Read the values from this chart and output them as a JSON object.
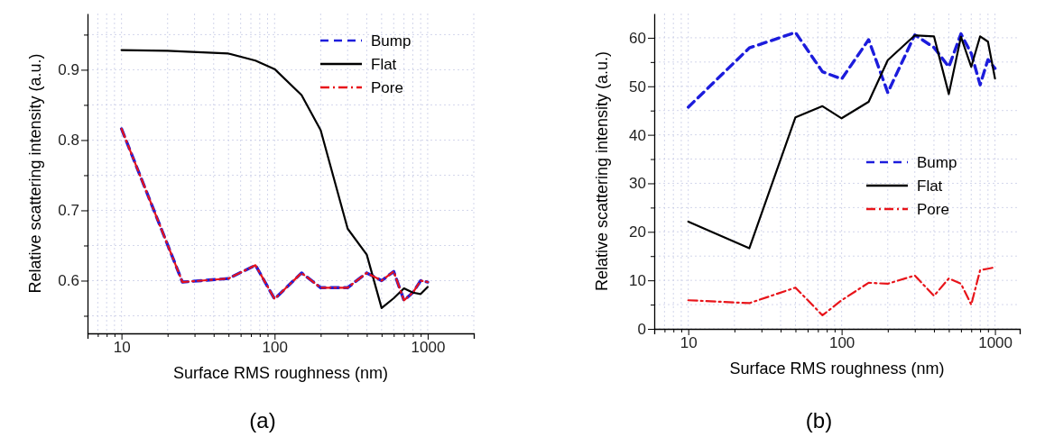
{
  "chart_data": [
    {
      "type": "line",
      "xlabel": "Surface RMS roughness (nm)",
      "ylabel": "Relative scattering intensity (a.u.)",
      "log": "x",
      "grid": true,
      "legend": "top right",
      "xlim": [
        6,
        2000
      ],
      "ylim": [
        0.525,
        0.98
      ],
      "xticks": [
        {
          "value": 7,
          "label": null
        },
        {
          "value": 8,
          "label": null
        },
        {
          "value": 9,
          "label": null
        },
        10,
        {
          "value": 20,
          "label": null
        },
        {
          "value": 30,
          "label": null
        },
        {
          "value": 40,
          "label": null
        },
        {
          "value": 50,
          "label": null
        },
        {
          "value": 60,
          "label": null
        },
        {
          "value": 70,
          "label": null
        },
        {
          "value": 80,
          "label": null
        },
        {
          "value": 90,
          "label": null
        },
        100,
        {
          "value": 200,
          "label": null
        },
        {
          "value": 300,
          "label": null
        },
        {
          "value": 400,
          "label": null
        },
        {
          "value": 500,
          "label": null
        },
        {
          "value": 600,
          "label": null
        },
        {
          "value": 700,
          "label": null
        },
        {
          "value": 800,
          "label": null
        },
        {
          "value": 900,
          "label": null
        },
        1000,
        {
          "value": 2000,
          "label": null
        }
      ],
      "yticks": [
        {
          "value": 0.55,
          "label": null
        },
        0.6,
        {
          "value": 0.65,
          "label": null
        },
        0.7,
        {
          "value": 0.75,
          "label": null
        },
        0.8,
        {
          "value": 0.85,
          "label": null
        },
        0.9,
        {
          "value": 0.95,
          "label": null
        }
      ],
      "x": [
        10,
        25,
        50,
        75,
        100,
        150,
        200,
        300,
        400,
        500,
        600,
        700,
        800,
        900,
        1000
      ],
      "series": [
        {
          "name": "Bump",
          "color": "#1c1cdc",
          "line_style": "dashed",
          "values": [
            0.816,
            0.598,
            0.603,
            0.622,
            0.574,
            0.611,
            0.59,
            0.59,
            0.611,
            0.6,
            0.613,
            0.572,
            0.583,
            0.6,
            0.598
          ]
        },
        {
          "name": "Flat",
          "color": "#000000",
          "line_style": "solid",
          "x": [
            10,
            20,
            25,
            50,
            75,
            100,
            150,
            200,
            300,
            400,
            500,
            600,
            700,
            800,
            900,
            1000
          ],
          "values": [
            0.928,
            0.927,
            0.926,
            0.923,
            0.913,
            0.901,
            0.864,
            0.814,
            0.674,
            0.637,
            0.561,
            0.575,
            0.589,
            0.583,
            0.581,
            0.591
          ]
        },
        {
          "name": "Pore",
          "color": "#e8141a",
          "line_style": "dashdot",
          "values": [
            0.816,
            0.598,
            0.603,
            0.622,
            0.574,
            0.611,
            0.59,
            0.59,
            0.611,
            0.6,
            0.613,
            0.572,
            0.583,
            0.6,
            0.598
          ]
        }
      ],
      "annotations": [
        "(a)"
      ]
    },
    {
      "type": "line",
      "xlabel": "Surface RMS roughness (nm)",
      "ylabel": "Relative scattering intensity (a.u.)",
      "log": "x",
      "grid": true,
      "legend": "right",
      "xlim": [
        6,
        1450
      ],
      "ylim": [
        0,
        65
      ],
      "xticks": [
        {
          "value": 7,
          "label": null
        },
        {
          "value": 8,
          "label": null
        },
        {
          "value": 9,
          "label": null
        },
        10,
        {
          "value": 20,
          "label": null
        },
        {
          "value": 30,
          "label": null
        },
        {
          "value": 40,
          "label": null
        },
        {
          "value": 50,
          "label": null
        },
        {
          "value": 60,
          "label": null
        },
        {
          "value": 70,
          "label": null
        },
        {
          "value": 80,
          "label": null
        },
        {
          "value": 90,
          "label": null
        },
        100,
        {
          "value": 200,
          "label": null
        },
        {
          "value": 300,
          "label": null
        },
        {
          "value": 400,
          "label": null
        },
        {
          "value": 500,
          "label": null
        },
        {
          "value": 600,
          "label": null
        },
        {
          "value": 700,
          "label": null
        },
        {
          "value": 800,
          "label": null
        },
        {
          "value": 900,
          "label": null
        },
        1000
      ],
      "yticks": [
        0,
        {
          "value": 5,
          "label": null
        },
        10,
        {
          "value": 15,
          "label": null
        },
        20,
        {
          "value": 25,
          "label": null
        },
        30,
        {
          "value": 35,
          "label": null
        },
        40,
        {
          "value": 45,
          "label": null
        },
        50,
        {
          "value": 55,
          "label": null
        },
        60
      ],
      "x": [
        10,
        25,
        50,
        75,
        100,
        150,
        200,
        300,
        400,
        500,
        600,
        700,
        800,
        900,
        1000
      ],
      "series": [
        {
          "name": "Bump",
          "color": "#1c1cdc",
          "line_style": "dashed",
          "values": [
            45.7,
            57.9,
            61.1,
            53,
            51.5,
            59.6,
            48.7,
            60.6,
            58,
            54,
            60.8,
            56.8,
            50.3,
            55.5,
            53.7
          ]
        },
        {
          "name": "Flat",
          "color": "#000000",
          "line_style": "solid",
          "values": [
            22.1,
            16.6,
            43.6,
            45.9,
            43.4,
            46.8,
            55.4,
            60.5,
            60.3,
            48.4,
            60.2,
            54,
            60.3,
            59.2,
            51.6
          ]
        },
        {
          "name": "Pore",
          "color": "#e8141a",
          "line_style": "dashdot",
          "values": [
            5.9,
            5.3,
            8.5,
            2.8,
            5.9,
            9.5,
            9.3,
            11,
            6.8,
            10.4,
            9.3,
            5,
            12.1,
            12.4,
            12.7
          ]
        }
      ],
      "annotations": [
        "(b)"
      ]
    }
  ]
}
